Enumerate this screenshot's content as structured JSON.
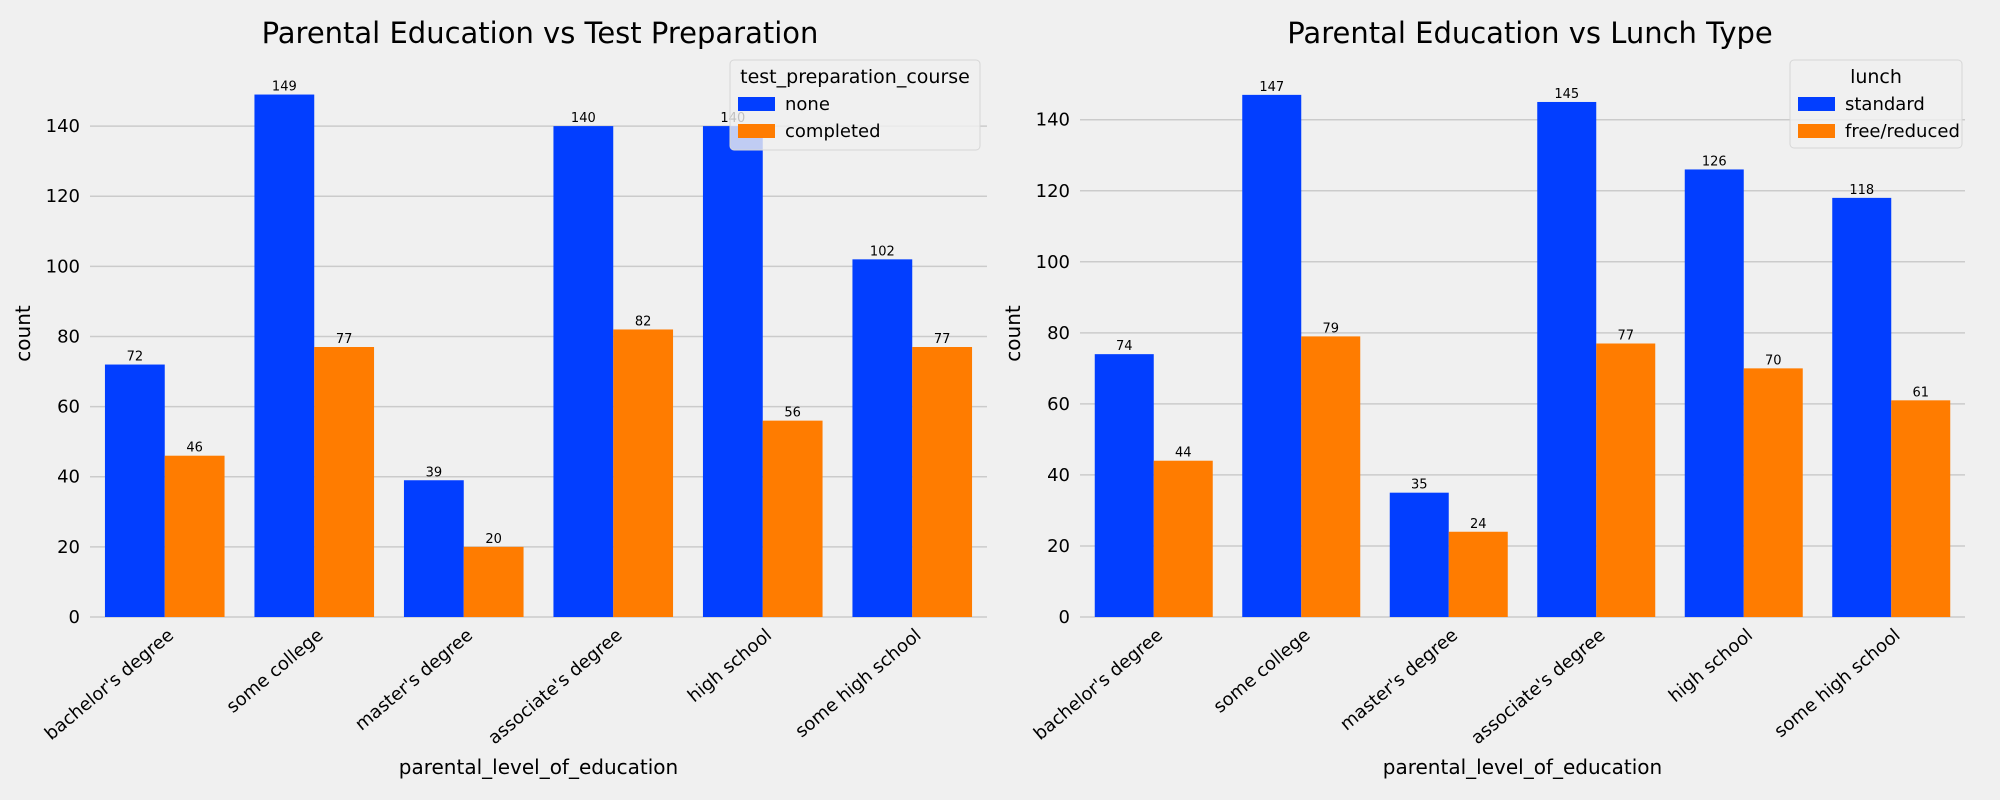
{
  "colors": {
    "blue": "#023eff",
    "orange": "#ff7c00",
    "background": "#f0f0f0",
    "grid": "#cbcbcb"
  },
  "chart_data": [
    {
      "type": "bar",
      "title": "Parental Education vs Test Preparation",
      "xlabel": "parental_level_of_education",
      "ylabel": "count",
      "ylim": [
        0,
        156
      ],
      "yticks": [
        0,
        20,
        40,
        60,
        80,
        100,
        120,
        140
      ],
      "grid": "horizontal",
      "legend": {
        "title": "test_preparation_course",
        "position": "top-right"
      },
      "categories": [
        "bachelor's degree",
        "some college",
        "master's degree",
        "associate's degree",
        "high school",
        "some high school"
      ],
      "series": [
        {
          "name": "none",
          "color": "#023eff",
          "values": [
            72,
            149,
            39,
            140,
            140,
            102
          ]
        },
        {
          "name": "completed",
          "color": "#ff7c00",
          "values": [
            46,
            77,
            20,
            82,
            56,
            77
          ]
        }
      ]
    },
    {
      "type": "bar",
      "title": "Parental Education vs Lunch Type",
      "xlabel": "parental_level_of_education",
      "ylabel": "count",
      "ylim": [
        0,
        154
      ],
      "yticks": [
        0,
        20,
        40,
        60,
        80,
        100,
        120,
        140
      ],
      "grid": "horizontal",
      "legend": {
        "title": "lunch",
        "position": "top-right"
      },
      "categories": [
        "bachelor's degree",
        "some college",
        "master's degree",
        "associate's degree",
        "high school",
        "some high school"
      ],
      "series": [
        {
          "name": "standard",
          "color": "#023eff",
          "values": [
            74,
            147,
            35,
            145,
            126,
            118
          ]
        },
        {
          "name": "free/reduced",
          "color": "#ff7c00",
          "values": [
            44,
            79,
            24,
            77,
            70,
            61
          ]
        }
      ]
    }
  ]
}
